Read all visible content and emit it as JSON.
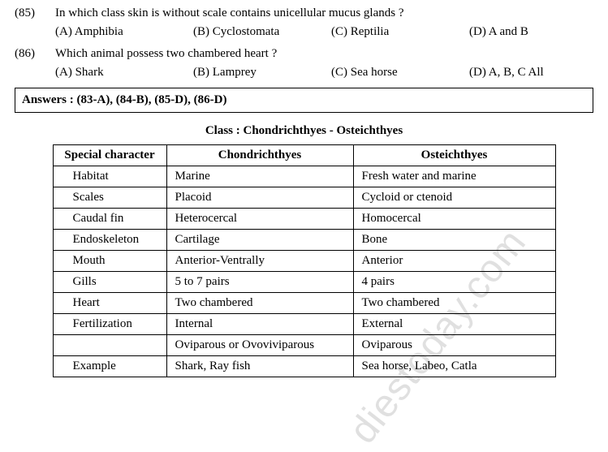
{
  "questions": [
    {
      "num": "(85)",
      "text": "In which class skin is without scale contains unicellular mucus glands ?",
      "opts": {
        "a": "(A) Amphibia",
        "b": "(B) Cyclostomata",
        "c": "(C) Reptilia",
        "d": "(D) A and B"
      }
    },
    {
      "num": "(86)",
      "text": "Which animal possess two chambered heart ?",
      "opts": {
        "a": "(A) Shark",
        "b": "(B) Lamprey",
        "c": "(C) Sea horse",
        "d": "(D) A, B, C  All"
      }
    }
  ],
  "answers_label": "Answers : (83-A), (84-B), (85-D), (86-D)",
  "table_title": "Class  :  Chondrichthyes  -  Osteichthyes",
  "table": {
    "headers": {
      "c1": "Special character",
      "c2": "Chondrichthyes",
      "c3": "Osteichthyes"
    },
    "rows": [
      {
        "c1": "Habitat",
        "c2": "Marine",
        "c3": "Fresh water and marine"
      },
      {
        "c1": "Scales",
        "c2": "Placoid",
        "c3": "Cycloid or ctenoid"
      },
      {
        "c1": "Caudal fin",
        "c2": "Heterocercal",
        "c3": "Homocercal"
      },
      {
        "c1": "Endoskeleton",
        "c2": "Cartilage",
        "c3": "Bone"
      },
      {
        "c1": "Mouth",
        "c2": "Anterior-Ventrally",
        "c3": "Anterior"
      },
      {
        "c1": "Gills",
        "c2": "5 to 7 pairs",
        "c3": "4 pairs"
      },
      {
        "c1": "Heart",
        "c2": "Two chambered",
        "c3": "Two chambered"
      },
      {
        "c1": "Fertilization",
        "c2": "Internal",
        "c3": "External"
      },
      {
        "c1": "",
        "c2": "Oviparous or Ovoviviparous",
        "c3": "Oviparous"
      },
      {
        "c1": "Example",
        "c2": "Shark, Ray fish",
        "c3": "Sea horse, Labeo, Catla"
      }
    ]
  },
  "watermark": "diestoday.com"
}
